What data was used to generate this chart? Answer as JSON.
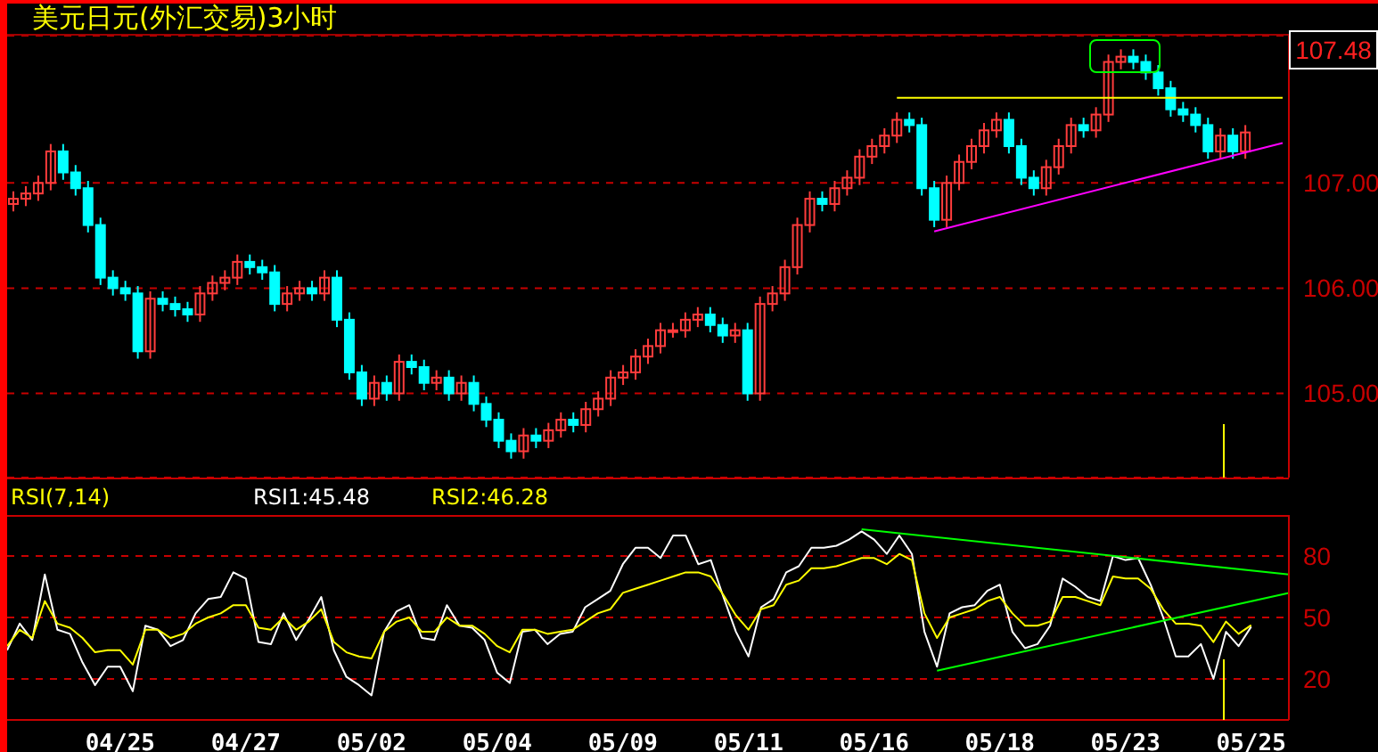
{
  "chart_data": [
    {
      "type": "candlestick",
      "title": "美元日元(外汇交易)3小时",
      "categories": [
        null,
        null,
        null,
        null,
        null,
        null,
        null,
        null,
        null,
        null,
        null,
        null,
        null,
        null,
        null,
        null,
        null,
        null,
        null,
        null,
        null,
        null,
        null,
        null,
        null,
        null,
        null,
        null,
        null,
        null,
        null,
        null,
        null,
        null,
        null,
        null,
        null,
        null,
        null,
        null,
        null,
        null,
        null,
        null,
        null,
        null,
        null,
        null,
        null,
        null,
        null,
        null,
        null,
        null,
        null,
        null,
        null,
        null,
        null,
        null,
        null,
        null,
        null,
        null,
        null,
        null,
        null,
        null,
        null,
        null,
        null,
        null,
        null,
        null,
        null,
        null,
        null,
        null,
        null,
        null,
        null,
        null,
        null,
        null,
        null,
        null,
        null,
        null,
        null,
        null,
        null,
        null,
        null,
        null,
        null,
        null,
        null,
        null,
        null,
        null,
        null,
        null,
        null
      ],
      "ohlc": [
        [
          106.8,
          106.92,
          106.73,
          106.85
        ],
        [
          106.85,
          106.97,
          106.78,
          106.9
        ],
        [
          106.9,
          107.07,
          106.83,
          107.0
        ],
        [
          107.0,
          107.37,
          106.93,
          107.3
        ],
        [
          107.3,
          107.37,
          107.03,
          107.1
        ],
        [
          107.1,
          107.17,
          106.88,
          106.95
        ],
        [
          106.95,
          107.02,
          106.53,
          106.6
        ],
        [
          106.6,
          106.67,
          106.03,
          106.1
        ],
        [
          106.1,
          106.17,
          105.93,
          106.0
        ],
        [
          106.0,
          106.07,
          105.88,
          105.95
        ],
        [
          105.95,
          106.02,
          105.33,
          105.4
        ],
        [
          105.4,
          105.97,
          105.33,
          105.9
        ],
        [
          105.9,
          105.97,
          105.78,
          105.85
        ],
        [
          105.85,
          105.92,
          105.73,
          105.8
        ],
        [
          105.8,
          105.87,
          105.68,
          105.75
        ],
        [
          105.75,
          106.02,
          105.68,
          105.95
        ],
        [
          105.95,
          106.12,
          105.88,
          106.05
        ],
        [
          106.05,
          106.17,
          105.98,
          106.1
        ],
        [
          106.1,
          106.32,
          106.03,
          106.25
        ],
        [
          106.25,
          106.32,
          106.13,
          106.2
        ],
        [
          106.2,
          106.27,
          106.08,
          106.15
        ],
        [
          106.15,
          106.22,
          105.78,
          105.85
        ],
        [
          105.85,
          106.02,
          105.78,
          105.95
        ],
        [
          105.95,
          106.07,
          105.88,
          106.0
        ],
        [
          106.0,
          106.07,
          105.88,
          105.95
        ],
        [
          105.95,
          106.17,
          105.88,
          106.1
        ],
        [
          106.1,
          106.17,
          105.63,
          105.7
        ],
        [
          105.7,
          105.77,
          105.13,
          105.2
        ],
        [
          105.2,
          105.27,
          104.88,
          104.95
        ],
        [
          104.95,
          105.17,
          104.88,
          105.1
        ],
        [
          105.1,
          105.17,
          104.93,
          105.0
        ],
        [
          105.0,
          105.37,
          104.93,
          105.3
        ],
        [
          105.3,
          105.37,
          105.18,
          105.25
        ],
        [
          105.25,
          105.32,
          105.03,
          105.1
        ],
        [
          105.1,
          105.22,
          105.03,
          105.15
        ],
        [
          105.15,
          105.22,
          104.93,
          105.0
        ],
        [
          105.0,
          105.17,
          104.93,
          105.1
        ],
        [
          105.1,
          105.17,
          104.83,
          104.9
        ],
        [
          104.9,
          104.97,
          104.68,
          104.75
        ],
        [
          104.75,
          104.82,
          104.48,
          104.55
        ],
        [
          104.55,
          104.62,
          104.38,
          104.45
        ],
        [
          104.45,
          104.67,
          104.38,
          104.6
        ],
        [
          104.6,
          104.67,
          104.48,
          104.55
        ],
        [
          104.55,
          104.72,
          104.48,
          104.65
        ],
        [
          104.65,
          104.82,
          104.58,
          104.75
        ],
        [
          104.75,
          104.82,
          104.63,
          104.7
        ],
        [
          104.7,
          104.92,
          104.63,
          104.85
        ],
        [
          104.85,
          105.02,
          104.78,
          104.95
        ],
        [
          104.95,
          105.22,
          104.88,
          105.15
        ],
        [
          105.15,
          105.27,
          105.08,
          105.2
        ],
        [
          105.2,
          105.42,
          105.13,
          105.35
        ],
        [
          105.35,
          105.52,
          105.28,
          105.45
        ],
        [
          105.45,
          105.67,
          105.38,
          105.6
        ],
        [
          105.6,
          105.67,
          105.53,
          105.6
        ],
        [
          105.6,
          105.77,
          105.53,
          105.7
        ],
        [
          105.7,
          105.82,
          105.63,
          105.75
        ],
        [
          105.75,
          105.82,
          105.58,
          105.65
        ],
        [
          105.65,
          105.72,
          105.48,
          105.55
        ],
        [
          105.55,
          105.67,
          105.48,
          105.6
        ],
        [
          105.6,
          105.67,
          104.93,
          105.0
        ],
        [
          105.0,
          105.92,
          104.93,
          105.85
        ],
        [
          105.85,
          106.02,
          105.78,
          105.95
        ],
        [
          105.95,
          106.27,
          105.88,
          106.2
        ],
        [
          106.2,
          106.67,
          106.13,
          106.6
        ],
        [
          106.6,
          106.92,
          106.53,
          106.85
        ],
        [
          106.85,
          106.92,
          106.73,
          106.8
        ],
        [
          106.8,
          107.02,
          106.73,
          106.95
        ],
        [
          106.95,
          107.12,
          106.88,
          107.05
        ],
        [
          107.05,
          107.32,
          106.98,
          107.25
        ],
        [
          107.25,
          107.42,
          107.18,
          107.35
        ],
        [
          107.35,
          107.52,
          107.28,
          107.45
        ],
        [
          107.45,
          107.67,
          107.38,
          107.6
        ],
        [
          107.6,
          107.67,
          107.48,
          107.55
        ],
        [
          107.55,
          107.62,
          106.88,
          106.95
        ],
        [
          106.95,
          107.02,
          106.58,
          106.65
        ],
        [
          106.65,
          107.07,
          106.58,
          107.0
        ],
        [
          107.0,
          107.27,
          106.93,
          107.2
        ],
        [
          107.2,
          107.42,
          107.13,
          107.35
        ],
        [
          107.35,
          107.57,
          107.28,
          107.5
        ],
        [
          107.5,
          107.67,
          107.43,
          107.6
        ],
        [
          107.6,
          107.67,
          107.28,
          107.35
        ],
        [
          107.35,
          107.42,
          106.98,
          107.05
        ],
        [
          107.05,
          107.12,
          106.88,
          106.95
        ],
        [
          106.95,
          107.22,
          106.88,
          107.15
        ],
        [
          107.15,
          107.42,
          107.08,
          107.35
        ],
        [
          107.35,
          107.62,
          107.28,
          107.55
        ],
        [
          107.55,
          107.62,
          107.43,
          107.5
        ],
        [
          107.5,
          107.72,
          107.43,
          107.65
        ],
        [
          107.65,
          108.22,
          107.58,
          108.15
        ],
        [
          108.15,
          108.27,
          108.08,
          108.2
        ],
        [
          108.2,
          108.27,
          108.08,
          108.15
        ],
        [
          108.15,
          108.22,
          107.98,
          108.05
        ],
        [
          108.05,
          108.12,
          107.83,
          107.9
        ],
        [
          107.9,
          107.97,
          107.63,
          107.7
        ],
        [
          107.7,
          107.77,
          107.58,
          107.65
        ],
        [
          107.65,
          107.72,
          107.48,
          107.55
        ],
        [
          107.55,
          107.62,
          107.23,
          107.3
        ],
        [
          107.3,
          107.52,
          107.23,
          107.45
        ],
        [
          107.45,
          107.52,
          107.23,
          107.3
        ],
        [
          107.3,
          107.55,
          107.23,
          107.48
        ],
        null,
        null,
        null
      ],
      "series": [
        {
          "type": "line",
          "color": "#ffff00",
          "values": [
            null,
            null,
            null,
            null,
            null,
            null,
            null,
            null,
            null,
            null,
            null,
            null,
            null,
            null,
            null,
            null,
            null,
            null,
            null,
            null,
            null,
            null,
            null,
            null,
            null,
            null,
            null,
            null,
            null,
            null,
            null,
            null,
            null,
            null,
            null,
            null,
            null,
            null,
            null,
            null,
            null,
            null,
            null,
            null,
            null,
            null,
            null,
            null,
            null,
            null,
            null,
            null,
            null,
            null,
            null,
            null,
            null,
            null,
            null,
            null,
            null,
            null,
            null,
            null,
            null,
            null,
            null,
            null,
            null,
            null,
            null,
            107.81,
            null,
            null,
            null,
            null,
            null,
            null,
            null,
            null,
            null,
            null,
            null,
            null,
            null,
            null,
            null,
            null,
            null,
            null,
            null,
            null,
            null,
            null,
            null,
            null,
            null,
            null,
            null,
            null,
            null,
            null,
            107.81
          ]
        },
        {
          "type": "line",
          "color": "#ff00ff",
          "values": [
            null,
            null,
            null,
            null,
            null,
            null,
            null,
            null,
            null,
            null,
            null,
            null,
            null,
            null,
            null,
            null,
            null,
            null,
            null,
            null,
            null,
            null,
            null,
            null,
            null,
            null,
            null,
            null,
            null,
            null,
            null,
            null,
            null,
            null,
            null,
            null,
            null,
            null,
            null,
            null,
            null,
            null,
            null,
            null,
            null,
            null,
            null,
            null,
            null,
            null,
            null,
            null,
            null,
            null,
            null,
            null,
            null,
            null,
            null,
            null,
            null,
            null,
            null,
            null,
            null,
            null,
            null,
            null,
            null,
            null,
            null,
            null,
            null,
            null,
            106.54,
            null,
            null,
            null,
            null,
            null,
            null,
            null,
            null,
            null,
            null,
            null,
            null,
            null,
            null,
            null,
            null,
            null,
            null,
            null,
            null,
            null,
            null,
            null,
            null,
            null,
            null,
            null,
            107.38
          ]
        }
      ],
      "annotations": [
        "107.48"
      ],
      "ylim": [
        104.2,
        108.4
      ],
      "yticks": [
        {
          "value": 105,
          "label": "105.00"
        },
        {
          "value": 106,
          "label": "106.00"
        },
        {
          "value": 107,
          "label": "107.00"
        }
      ],
      "grid": "y",
      "tick_labels": "y"
    },
    {
      "type": "line",
      "legend_title": "RSI(7,14)",
      "legend": "top left",
      "categories": [
        null,
        null,
        null,
        null,
        null,
        null,
        null,
        null,
        null,
        "04/25",
        null,
        null,
        null,
        null,
        null,
        null,
        null,
        null,
        null,
        "04/27",
        null,
        null,
        null,
        null,
        null,
        null,
        null,
        null,
        null,
        "05/02",
        null,
        null,
        null,
        null,
        null,
        null,
        null,
        null,
        null,
        "05/04",
        null,
        null,
        null,
        null,
        null,
        null,
        null,
        null,
        null,
        "05/09",
        null,
        null,
        null,
        null,
        null,
        null,
        null,
        null,
        null,
        "05/11",
        null,
        null,
        null,
        null,
        null,
        null,
        null,
        null,
        null,
        "05/16",
        null,
        null,
        null,
        null,
        null,
        null,
        null,
        null,
        null,
        "05/18",
        null,
        null,
        null,
        null,
        null,
        null,
        null,
        null,
        null,
        "05/23",
        null,
        null,
        null,
        null,
        null,
        null,
        null,
        null,
        null,
        "05/25",
        null,
        null,
        null
      ],
      "series": [
        {
          "name": "RSI1:45.48",
          "color": "#ffffff",
          "values": [
            34,
            47,
            39,
            71,
            44,
            42,
            28,
            17,
            26,
            26,
            14,
            46,
            44,
            36,
            39,
            52,
            59,
            60,
            72,
            69,
            38,
            37,
            52,
            39,
            49,
            60,
            34,
            21,
            17,
            12,
            43,
            53,
            56,
            40,
            39,
            56,
            46,
            45,
            39,
            23,
            18,
            43,
            44,
            37,
            42,
            43,
            55,
            59,
            63,
            76,
            84,
            84,
            79,
            90,
            90,
            76,
            78,
            60,
            43,
            31,
            55,
            59,
            72,
            75,
            84,
            84,
            85,
            88,
            92,
            88,
            81,
            90,
            81,
            43,
            26,
            52,
            55,
            56,
            63,
            66,
            43,
            35,
            37,
            46,
            69,
            65,
            60,
            58,
            80,
            78,
            79,
            66,
            50,
            31,
            31,
            37,
            20,
            43,
            36,
            45.48,
            null,
            null,
            null
          ]
        },
        {
          "name": "RSI2:46.28",
          "color": "#ffff00",
          "values": [
            36,
            44,
            40,
            58,
            47,
            45,
            40,
            33,
            34,
            34,
            27,
            44,
            44,
            40,
            42,
            47,
            50,
            52,
            56,
            56,
            45,
            44,
            50,
            44,
            48,
            54,
            38,
            33,
            31,
            30,
            43,
            48,
            50,
            43,
            43,
            50,
            46,
            46,
            42,
            36,
            33,
            44,
            44,
            42,
            43,
            44,
            48,
            52,
            54,
            62,
            64,
            66,
            68,
            70,
            72,
            72,
            70,
            61,
            51,
            44,
            54,
            56,
            66,
            68,
            74,
            74,
            75,
            77,
            79,
            79,
            76,
            81,
            78,
            52,
            40,
            50,
            52,
            54,
            58,
            60,
            52,
            46,
            46,
            48,
            60,
            60,
            58,
            56,
            70,
            69,
            69,
            64,
            54,
            47,
            47,
            46,
            38,
            48,
            42,
            46.28,
            null,
            null,
            null
          ]
        },
        {
          "type": "line",
          "color": "#00ff00",
          "values": [
            null,
            null,
            null,
            null,
            null,
            null,
            null,
            null,
            null,
            null,
            null,
            null,
            null,
            null,
            null,
            null,
            null,
            null,
            null,
            null,
            null,
            null,
            null,
            null,
            null,
            null,
            null,
            null,
            null,
            null,
            null,
            null,
            null,
            null,
            null,
            null,
            null,
            null,
            null,
            null,
            null,
            null,
            null,
            null,
            null,
            null,
            null,
            null,
            null,
            null,
            null,
            null,
            null,
            null,
            null,
            null,
            null,
            null,
            null,
            null,
            null,
            null,
            null,
            null,
            null,
            null,
            null,
            null,
            93,
            null,
            null,
            null,
            null,
            null,
            null,
            null,
            null,
            null,
            null,
            null,
            null,
            null,
            null,
            null,
            null,
            null,
            null,
            null,
            null,
            null,
            null,
            null,
            null,
            null,
            null,
            null,
            null,
            null,
            null,
            null,
            null,
            null,
            71
          ]
        },
        {
          "type": "line",
          "color": "#00ff00",
          "values": [
            null,
            null,
            null,
            null,
            null,
            null,
            null,
            null,
            null,
            null,
            null,
            null,
            null,
            null,
            null,
            null,
            null,
            null,
            null,
            null,
            null,
            null,
            null,
            null,
            null,
            null,
            null,
            null,
            null,
            null,
            null,
            null,
            null,
            null,
            null,
            null,
            null,
            null,
            null,
            null,
            null,
            null,
            null,
            null,
            null,
            null,
            null,
            null,
            null,
            null,
            null,
            null,
            null,
            null,
            null,
            null,
            null,
            null,
            null,
            null,
            null,
            null,
            null,
            null,
            null,
            null,
            null,
            null,
            null,
            null,
            null,
            null,
            null,
            null,
            24,
            null,
            null,
            null,
            null,
            null,
            null,
            null,
            null,
            null,
            null,
            null,
            null,
            null,
            null,
            null,
            null,
            null,
            null,
            null,
            null,
            null,
            null,
            null,
            null,
            null,
            null,
            null,
            62
          ]
        }
      ],
      "ylim": [
        0,
        100
      ],
      "yticks": [
        20,
        50,
        80
      ],
      "grid": "y"
    }
  ]
}
